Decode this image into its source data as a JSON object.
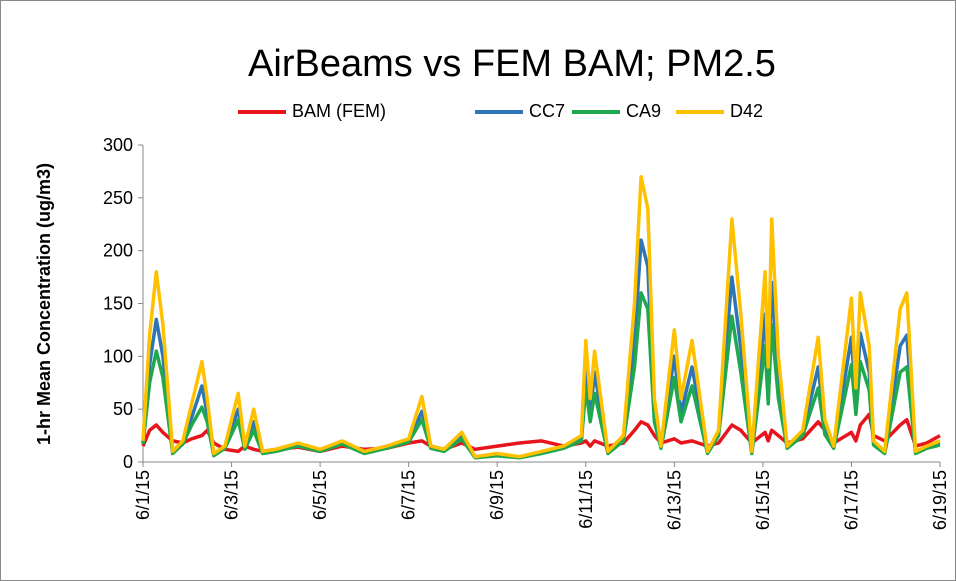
{
  "chart_data": {
    "type": "line",
    "title": "AirBeams vs FEM BAM; PM2.5",
    "y_label": "1-hr Mean Concentration (ug/m3)",
    "x": [
      0,
      0.15,
      0.3,
      0.45,
      0.67,
      0.9,
      1.1,
      1.33,
      1.45,
      1.6,
      1.85,
      2.15,
      2.3,
      2.5,
      2.7,
      3.0,
      3.5,
      4.0,
      4.5,
      5.0,
      5.5,
      6.0,
      6.3,
      6.5,
      6.8,
      7.2,
      7.5,
      8.0,
      8.5,
      9.0,
      9.5,
      9.9,
      10.0,
      10.1,
      10.2,
      10.5,
      10.85,
      11.1,
      11.25,
      11.4,
      11.55,
      11.7,
      12.0,
      12.15,
      12.4,
      12.75,
      13.0,
      13.3,
      13.5,
      13.75,
      14.05,
      14.12,
      14.2,
      14.35,
      14.55,
      14.9,
      15.25,
      15.4,
      15.6,
      16.0,
      16.1,
      16.2,
      16.4,
      16.5,
      16.75,
      17.1,
      17.25,
      17.45,
      17.7,
      18.0
    ],
    "series": [
      {
        "name": "BAM (FEM)",
        "color": "#e8141c",
        "values": [
          15,
          30,
          35,
          28,
          20,
          18,
          22,
          25,
          30,
          18,
          12,
          10,
          15,
          12,
          10,
          12,
          14,
          10,
          15,
          12,
          13,
          18,
          20,
          15,
          12,
          18,
          12,
          15,
          18,
          20,
          15,
          18,
          20,
          15,
          20,
          15,
          18,
          30,
          38,
          35,
          25,
          18,
          22,
          18,
          20,
          15,
          18,
          35,
          30,
          18,
          28,
          20,
          30,
          25,
          18,
          22,
          38,
          30,
          18,
          28,
          20,
          35,
          45,
          25,
          20,
          35,
          40,
          15,
          18,
          25
        ]
      },
      {
        "name": "CC7",
        "color": "#2e75b6",
        "values": [
          18,
          92,
          135,
          100,
          9,
          18,
          42,
          72,
          46,
          7,
          14,
          50,
          13,
          38,
          9,
          11,
          16,
          11,
          18,
          9,
          14,
          20,
          48,
          14,
          11,
          25,
          5,
          7,
          5,
          9,
          14,
          22,
          88,
          46,
          85,
          9,
          22,
          115,
          210,
          185,
          46,
          14,
          100,
          46,
          90,
          9,
          27,
          175,
          108,
          9,
          140,
          70,
          170,
          77,
          14,
          27,
          90,
          31,
          14,
          118,
          54,
          122,
          85,
          18,
          9,
          110,
          120,
          9,
          14,
          18
        ]
      },
      {
        "name": "CA9",
        "color": "#1fa84f",
        "values": [
          17,
          75,
          105,
          80,
          8,
          17,
          35,
          52,
          38,
          6,
          13,
          40,
          12,
          30,
          8,
          10,
          15,
          10,
          17,
          8,
          13,
          19,
          40,
          13,
          10,
          22,
          4,
          6,
          4,
          8,
          13,
          20,
          70,
          38,
          65,
          8,
          20,
          90,
          160,
          145,
          38,
          13,
          80,
          38,
          72,
          8,
          25,
          138,
          85,
          8,
          110,
          55,
          130,
          60,
          13,
          25,
          70,
          26,
          13,
          92,
          45,
          95,
          68,
          16,
          8,
          85,
          90,
          8,
          13,
          16
        ]
      },
      {
        "name": "D42",
        "color": "#ffc000",
        "values": [
          20,
          120,
          180,
          130,
          10,
          20,
          55,
          95,
          60,
          8,
          15,
          65,
          15,
          50,
          10,
          12,
          18,
          12,
          20,
          10,
          15,
          22,
          62,
          15,
          12,
          28,
          5,
          8,
          5,
          10,
          15,
          25,
          115,
          60,
          105,
          10,
          25,
          150,
          270,
          240,
          60,
          15,
          125,
          60,
          115,
          10,
          30,
          230,
          140,
          10,
          180,
          90,
          230,
          100,
          15,
          30,
          118,
          40,
          15,
          155,
          70,
          160,
          110,
          20,
          10,
          145,
          160,
          10,
          15,
          20
        ]
      }
    ],
    "xlim": [
      0,
      18
    ],
    "xticks": [
      {
        "value": 0,
        "label": "6/1/15"
      },
      {
        "value": 2,
        "label": "6/3/15"
      },
      {
        "value": 4,
        "label": "6/5/15"
      },
      {
        "value": 6,
        "label": "6/7/15"
      },
      {
        "value": 8,
        "label": "6/9/15"
      },
      {
        "value": 10,
        "label": "6/11/15"
      },
      {
        "value": 12,
        "label": "6/13/15"
      },
      {
        "value": 14,
        "label": "6/15/15"
      },
      {
        "value": 16,
        "label": "6/17/15"
      },
      {
        "value": 18,
        "label": "6/19/15"
      }
    ],
    "ylim": [
      0,
      300
    ],
    "yticks": [
      0,
      50,
      100,
      150,
      200,
      250,
      300
    ],
    "grid": false,
    "legend": "top"
  }
}
